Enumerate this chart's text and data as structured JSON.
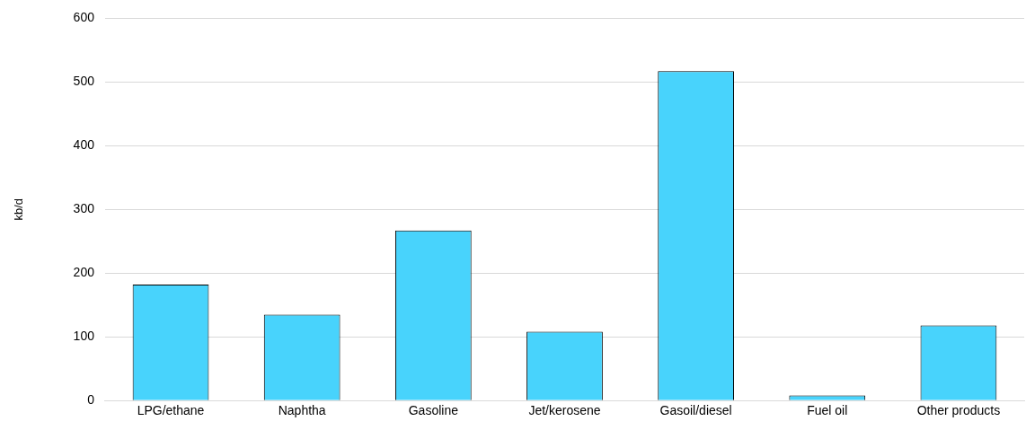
{
  "chart_data": {
    "type": "bar",
    "ylabel": "kb/d",
    "categories": [
      "LPG/ethane",
      "Naphtha",
      "Gasoline",
      "Jet/kerosene",
      "Gasoil/diesel",
      "Fuel oil",
      "Other products"
    ],
    "values": [
      182,
      135,
      267,
      108,
      517,
      8,
      118
    ],
    "color": "#48d3fc",
    "ylim": [
      0,
      600
    ],
    "yticks": [
      0,
      100,
      200,
      300,
      400,
      500,
      600
    ],
    "grid": "y"
  }
}
